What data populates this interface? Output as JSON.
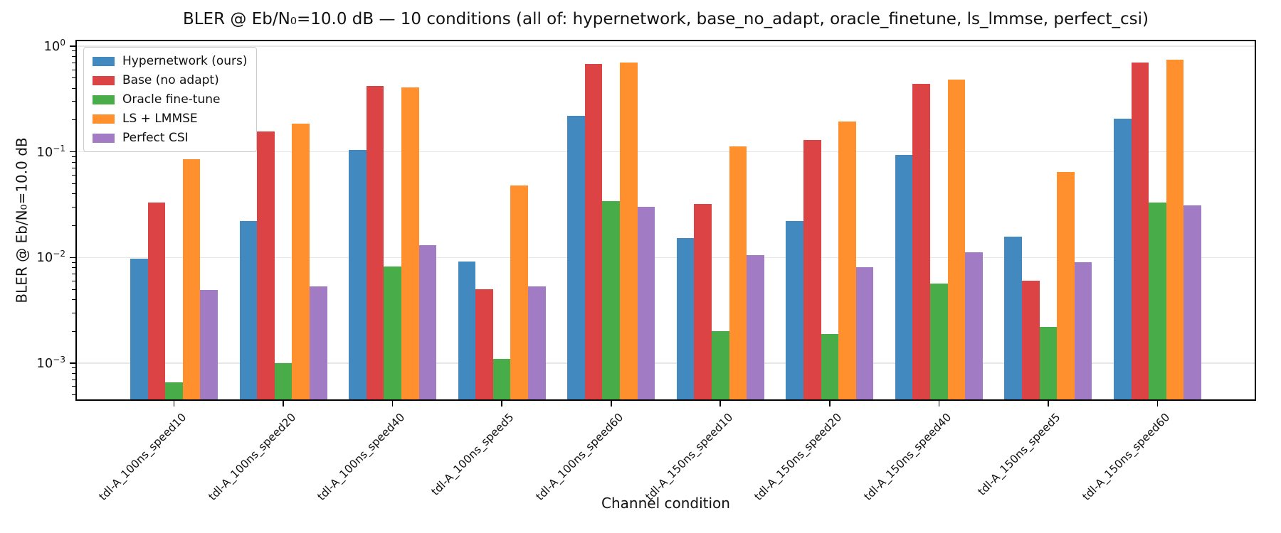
{
  "chart_data": {
    "type": "bar",
    "title": "BLER @ Eb/N₀=10.0 dB — 10 conditions (all of: hypernetwork, base_no_adapt, oracle_finetune, ls_lmmse, perfect_csi)",
    "xlabel": "Channel condition",
    "ylabel": "BLER @ Eb/N₀=10.0 dB",
    "yscale": "log",
    "ylim": [
      0.000454,
      1.115
    ],
    "ytick_exponents": [
      "0",
      "−1",
      "−2",
      "−3"
    ],
    "ytick_values": [
      1,
      0.1,
      0.01,
      0.001
    ],
    "grid": "horizontal major gridlines, light gray",
    "legend_position": "upper left",
    "categories": [
      "tdl-A_100ns_speed10",
      "tdl-A_100ns_speed20",
      "tdl-A_100ns_speed40",
      "tdl-A_100ns_speed5",
      "tdl-A_100ns_speed60",
      "tdl-A_150ns_speed10",
      "tdl-A_150ns_speed20",
      "tdl-A_150ns_speed40",
      "tdl-A_150ns_speed5",
      "tdl-A_150ns_speed60"
    ],
    "series": [
      {
        "name": "Hypernetwork (ours)",
        "color": "#4189be",
        "values": [
          0.0097,
          0.022,
          0.105,
          0.0092,
          0.22,
          0.0152,
          0.022,
          0.094,
          0.0157,
          0.205
        ]
      },
      {
        "name": "Base (no adapt)",
        "color": "#db4344",
        "values": [
          0.033,
          0.155,
          0.42,
          0.005,
          0.68,
          0.032,
          0.13,
          0.44,
          0.006,
          0.7
        ]
      },
      {
        "name": "Oracle fine-tune",
        "color": "#48ac48",
        "values": [
          0.00066,
          0.001,
          0.0082,
          0.0011,
          0.034,
          0.002,
          0.0019,
          0.0057,
          0.0022,
          0.033
        ]
      },
      {
        "name": "LS + LMMSE",
        "color": "#ff902d",
        "values": [
          0.085,
          0.185,
          0.41,
          0.048,
          0.7,
          0.112,
          0.195,
          0.48,
          0.065,
          0.75
        ]
      },
      {
        "name": "Perfect CSI",
        "color": "#a27bc5",
        "values": [
          0.0049,
          0.0053,
          0.013,
          0.0053,
          0.03,
          0.0105,
          0.0081,
          0.0112,
          0.009,
          0.031
        ]
      }
    ],
    "theme": {
      "spine_color": "#000000",
      "grid_color": "#e7e7e7",
      "background": "#ffffff",
      "text_color": "#111111"
    }
  }
}
